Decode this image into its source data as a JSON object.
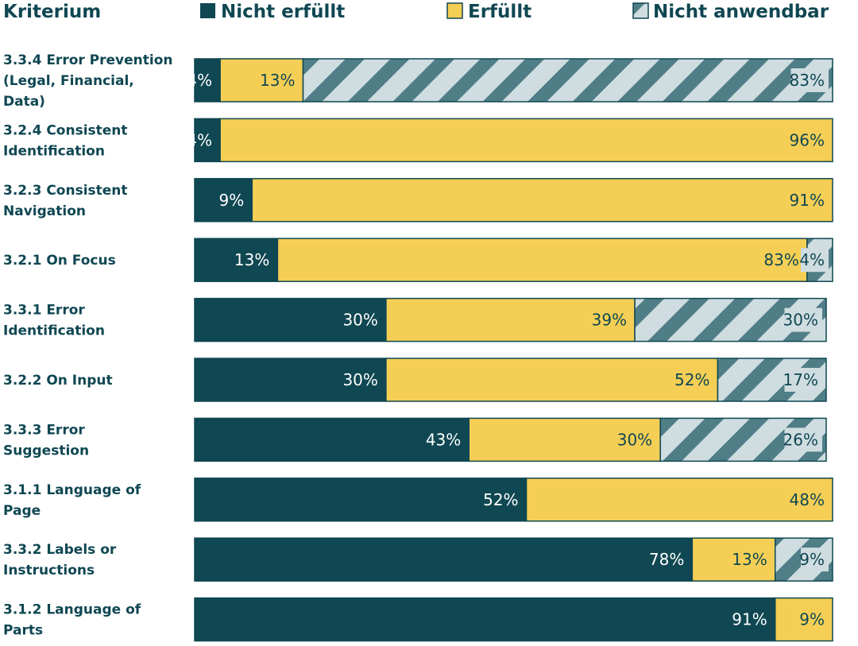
{
  "colors": {
    "not_met": "#0f4752",
    "met": "#f5cf55",
    "na_light": "#cfdce0",
    "na_dark": "#4f7e87",
    "text_dark": "#0f4752",
    "text_light": "#ffffff"
  },
  "chart_data": {
    "type": "bar",
    "orientation": "horizontal",
    "stacked": true,
    "percent_scale": true,
    "category_header": "Kriterium",
    "legend_position": "top",
    "categories": [
      [
        "3.3.4 Error Prevention",
        "(Legal, Financial,",
        "Data)"
      ],
      [
        "3.2.4 Consistent",
        "Identification"
      ],
      [
        "3.2.3 Consistent",
        "Navigation"
      ],
      [
        "3.2.1 On Focus"
      ],
      [
        "3.3.1 Error",
        "Identification"
      ],
      [
        "3.2.2 On Input"
      ],
      [
        "3.3.3 Error",
        "Suggestion"
      ],
      [
        "3.1.1 Language of",
        "Page"
      ],
      [
        "3.3.2 Labels or",
        "Instructions"
      ],
      [
        "3.1.2 Language of",
        "Parts"
      ]
    ],
    "series": [
      {
        "name": "Nicht erfüllt",
        "pattern": "solid",
        "values": [
          4,
          4,
          9,
          13,
          30,
          30,
          43,
          52,
          78,
          91
        ]
      },
      {
        "name": "Erfüllt",
        "pattern": "solid",
        "values": [
          13,
          96,
          91,
          83,
          39,
          52,
          30,
          48,
          13,
          9
        ]
      },
      {
        "name": "Nicht anwendbar",
        "pattern": "hatched",
        "values": [
          83,
          0,
          0,
          4,
          30,
          17,
          26,
          0,
          9,
          0
        ]
      }
    ]
  }
}
